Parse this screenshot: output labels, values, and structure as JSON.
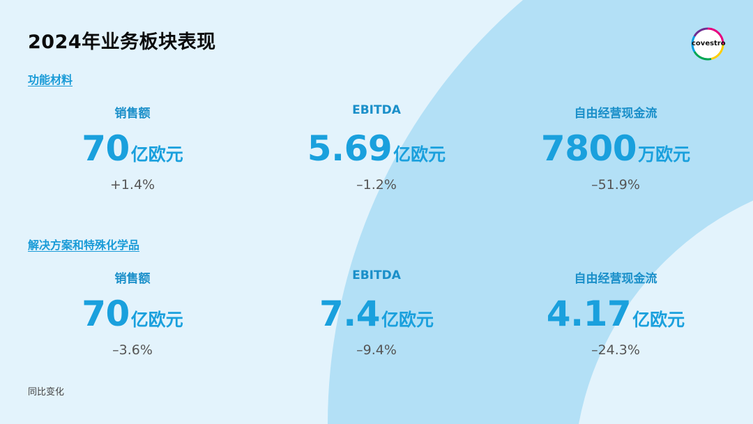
{
  "title": "2024年业务板块表现",
  "logo": {
    "text": "covestro",
    "ring_colors": [
      "#e6007e",
      "#ffcd00",
      "#00a651",
      "#009fe3",
      "#6f2c91"
    ]
  },
  "colors": {
    "background": "#e3f3fc",
    "arc": "#b3e0f6",
    "accent": "#1aa0dd",
    "label": "#1a8fc9"
  },
  "sections": [
    {
      "label": "功能材料",
      "metrics": [
        {
          "label": "销售额",
          "value": "70",
          "unit": "亿欧元",
          "change": "+1.4%"
        },
        {
          "label": "EBITDA",
          "value": "5.69",
          "unit": "亿欧元",
          "change": "–1.2%"
        },
        {
          "label": "自由经营现金流",
          "value": "7800",
          "unit": "万欧元",
          "change": "–51.9%"
        }
      ]
    },
    {
      "label": "解决方案和特殊化学品",
      "metrics": [
        {
          "label": "销售额",
          "value": "70",
          "unit": "亿欧元",
          "change": "–3.6%"
        },
        {
          "label": "EBITDA",
          "value": "7.4",
          "unit": "亿欧元",
          "change": "–9.4%"
        },
        {
          "label": "自由经营现金流",
          "value": "4.17",
          "unit": "亿欧元",
          "change": "–24.3%"
        }
      ]
    }
  ],
  "footnote": "同比变化"
}
